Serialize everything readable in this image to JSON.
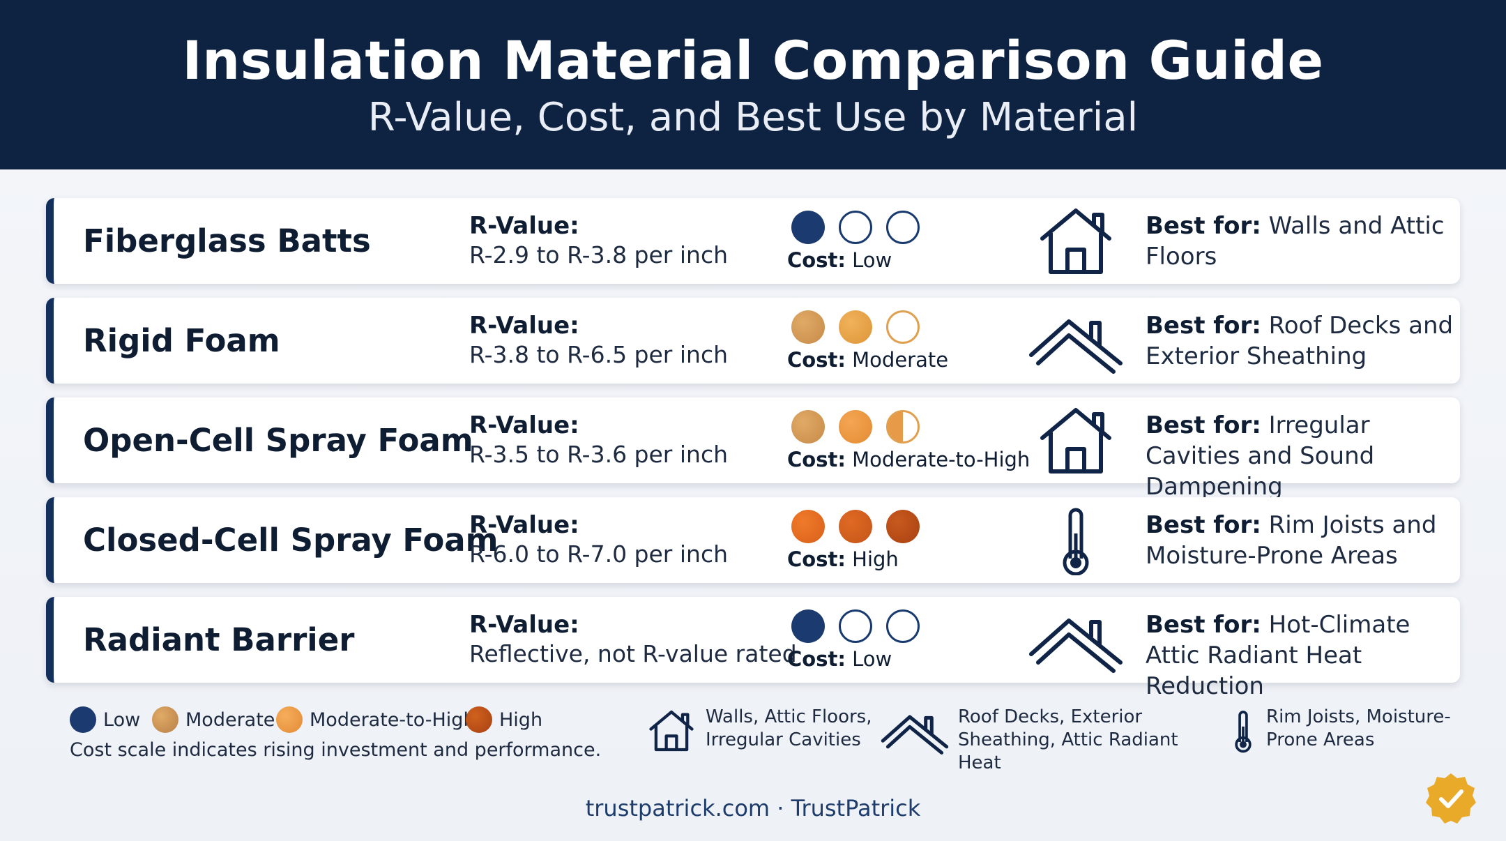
{
  "header": {
    "title": "Insulation Material Comparison Guide",
    "subtitle": "R-Value, Cost, and Best Use by Material"
  },
  "rows": [
    {
      "name": "Fiberglass Batts",
      "rvalue_label": "R-Value:",
      "rvalue": "R-2.9 to R-3.8 per inch",
      "cost_label": "Cost:",
      "cost": "Low",
      "cost_level_dots": 1,
      "icon": "house-icon",
      "best_label": "Best for:",
      "best": "Walls and Attic Floors"
    },
    {
      "name": "Rigid Foam",
      "rvalue_label": "R-Value:",
      "rvalue": "R-3.8 to R-6.5 per inch",
      "cost_label": "Cost:",
      "cost": "Moderate",
      "cost_level_dots": 2,
      "icon": "roof-icon",
      "best_label": "Best for:",
      "best": "Roof Decks and Exterior Sheathing"
    },
    {
      "name": "Open-Cell Spray Foam",
      "rvalue_label": "R-Value:",
      "rvalue": "R-3.5 to R-3.6 per inch",
      "cost_label": "Cost:",
      "cost": "Moderate-to-High",
      "cost_level_dots": 2.5,
      "icon": "house-icon",
      "best_label": "Best for:",
      "best": "Irregular Cavities and Sound Dampening"
    },
    {
      "name": "Closed-Cell Spray Foam",
      "rvalue_label": "R-Value:",
      "rvalue": "R-6.0 to R-7.0 per inch",
      "cost_label": "Cost:",
      "cost": "High",
      "cost_level_dots": 3,
      "icon": "thermometer-icon",
      "best_label": "Best for:",
      "best": "Rim Joists and Moisture-Prone Areas"
    },
    {
      "name": "Radiant Barrier",
      "rvalue_label": "R-Value:",
      "rvalue": "Reflective, not R-value rated",
      "cost_label": "Cost:",
      "cost": "Low",
      "cost_level_dots": 1,
      "icon": "roof-icon",
      "best_label": "Best for:",
      "best": "Hot-Climate Attic Radiant Heat Reduction"
    }
  ],
  "legend": {
    "items": [
      {
        "label": "Low",
        "color": "#1b3a6f"
      },
      {
        "label": "Moderate",
        "color": "#cf9a5c"
      },
      {
        "label": "Moderate-to-High",
        "color": "#eb9a45"
      },
      {
        "label": "High",
        "color": "#b8501a"
      }
    ],
    "note": "Cost scale indicates rising investment and performance."
  },
  "usecases": [
    {
      "icon": "house-icon",
      "text": "Walls, Attic Floors, Irregular Cavities"
    },
    {
      "icon": "roof-icon",
      "text": "Roof Decks, Exterior Sheathing, Attic Radiant Heat"
    },
    {
      "icon": "thermometer-icon",
      "text": "Rim Joists, Moisture-Prone Areas"
    }
  ],
  "footer": "trustpatrick.com · TrustPatrick",
  "colors": {
    "navy": "#0e2242",
    "accent_border": "#13305d",
    "low": "#1b3a6f",
    "moderate": "#cf9a5c",
    "moderate_high": "#eb9a45",
    "high": "#c9621f",
    "badge": "#e9aa2a"
  }
}
